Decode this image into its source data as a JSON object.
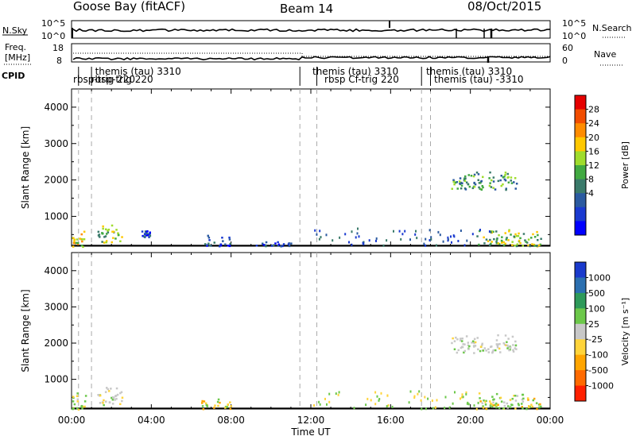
{
  "header": {
    "station": "Goose Bay (fitACF)",
    "beam": "Beam 14",
    "date": "08/Oct/2015"
  },
  "noise_panel": {
    "left_label": "N.Sky",
    "right_label": "N.Search",
    "y_ticks": [
      "10^5",
      "10^0"
    ]
  },
  "freq_panel": {
    "left_label_1": "Freq.",
    "left_label_2": "[MHz]",
    "right_label": "Nave",
    "left_ticks": [
      "18",
      "8"
    ],
    "right_ticks": [
      "60",
      "0"
    ]
  },
  "cpid": {
    "label": "CPID",
    "entries": [
      {
        "name": "themis (tau) 3310",
        "start_hour": 1.1
      },
      {
        "name": "rbsp-trig 220",
        "start_hour": 0.0
      },
      {
        "name": "rbsp-trig 220",
        "start_hour": 0.9
      },
      {
        "name": "themis (tau) 3310",
        "start_hour": 12.0
      },
      {
        "name": "rbsp Cf-trig 220",
        "start_hour": 12.6
      },
      {
        "name": "themis (tau) 3310",
        "start_hour": 17.7
      },
      {
        "name": "themis (tau) -3310",
        "start_hour": 18.1
      }
    ],
    "boundaries_hours": [
      0.35,
      1.0,
      11.45,
      12.3,
      17.55,
      18.0
    ]
  },
  "chart_data": [
    {
      "type": "heatmap",
      "title": "Power",
      "ylabel": "Slant Range [km]",
      "xlabel": "",
      "x_range_hours": [
        0,
        24
      ],
      "ylim": [
        180,
        4500
      ],
      "y_ticks": [
        1000,
        2000,
        3000,
        4000
      ],
      "colorbar": {
        "label": "Power [dB]",
        "ticks": [
          "28",
          "24",
          "20",
          "16",
          "12",
          "8",
          "4"
        ],
        "colors": [
          "#e50000",
          "#f24d00",
          "#ff8c00",
          "#ffc800",
          "#9fdc2c",
          "#41a941",
          "#3a7a6a",
          "#2b5aa0",
          "#1a3ad0",
          "#0000ff"
        ]
      },
      "echo_regions": [
        {
          "start_h": 0.0,
          "end_h": 0.6,
          "range_min": 180,
          "range_max": 650,
          "level": 6
        },
        {
          "start_h": 1.2,
          "end_h": 2.5,
          "range_min": 300,
          "range_max": 800,
          "level": 5
        },
        {
          "start_h": 3.5,
          "end_h": 3.9,
          "range_min": 450,
          "range_max": 650,
          "level": 2
        },
        {
          "start_h": 6.5,
          "end_h": 8.0,
          "range_min": 200,
          "range_max": 500,
          "level": 2
        },
        {
          "start_h": 9.0,
          "end_h": 11.0,
          "range_min": 200,
          "range_max": 320,
          "level": 2
        },
        {
          "start_h": 19.0,
          "end_h": 22.3,
          "range_min": 1750,
          "range_max": 2250,
          "level": 4
        },
        {
          "start_h": 20.3,
          "end_h": 23.5,
          "range_min": 200,
          "range_max": 650,
          "level": 5
        }
      ]
    },
    {
      "type": "heatmap",
      "title": "Velocity",
      "ylabel": "Slant Range [km]",
      "xlabel": "Time UT",
      "x_ticks": [
        "00:00",
        "04:00",
        "08:00",
        "12:00",
        "16:00",
        "20:00",
        "00:00"
      ],
      "x_range_hours": [
        0,
        24
      ],
      "ylim": [
        180,
        4500
      ],
      "y_ticks": [
        1000,
        2000,
        3000,
        4000
      ],
      "colorbar": {
        "label": "Velocity [m s⁻¹]",
        "ticks": [
          "1000",
          "500",
          "100",
          "25",
          "-25",
          "-100",
          "-500",
          "-1000"
        ],
        "colors": [
          "#1a3acc",
          "#2b6fb0",
          "#2e9a5a",
          "#6cc84a",
          "#c8c8c8",
          "#ffd43a",
          "#ffa500",
          "#ff6a00",
          "#ff2000"
        ]
      },
      "echo_regions": [
        {
          "start_h": 0.0,
          "end_h": 0.7,
          "range_min": 180,
          "range_max": 650,
          "class": "low-positive"
        },
        {
          "start_h": 1.2,
          "end_h": 2.5,
          "range_min": 300,
          "range_max": 800,
          "class": "near-zero"
        },
        {
          "start_h": 6.5,
          "end_h": 8.0,
          "range_min": 200,
          "range_max": 500,
          "class": "negative"
        },
        {
          "start_h": 19.0,
          "end_h": 22.3,
          "range_min": 1750,
          "range_max": 2250,
          "class": "near-zero"
        },
        {
          "start_h": 20.3,
          "end_h": 23.5,
          "range_min": 200,
          "range_max": 650,
          "class": "low-positive"
        }
      ]
    }
  ]
}
